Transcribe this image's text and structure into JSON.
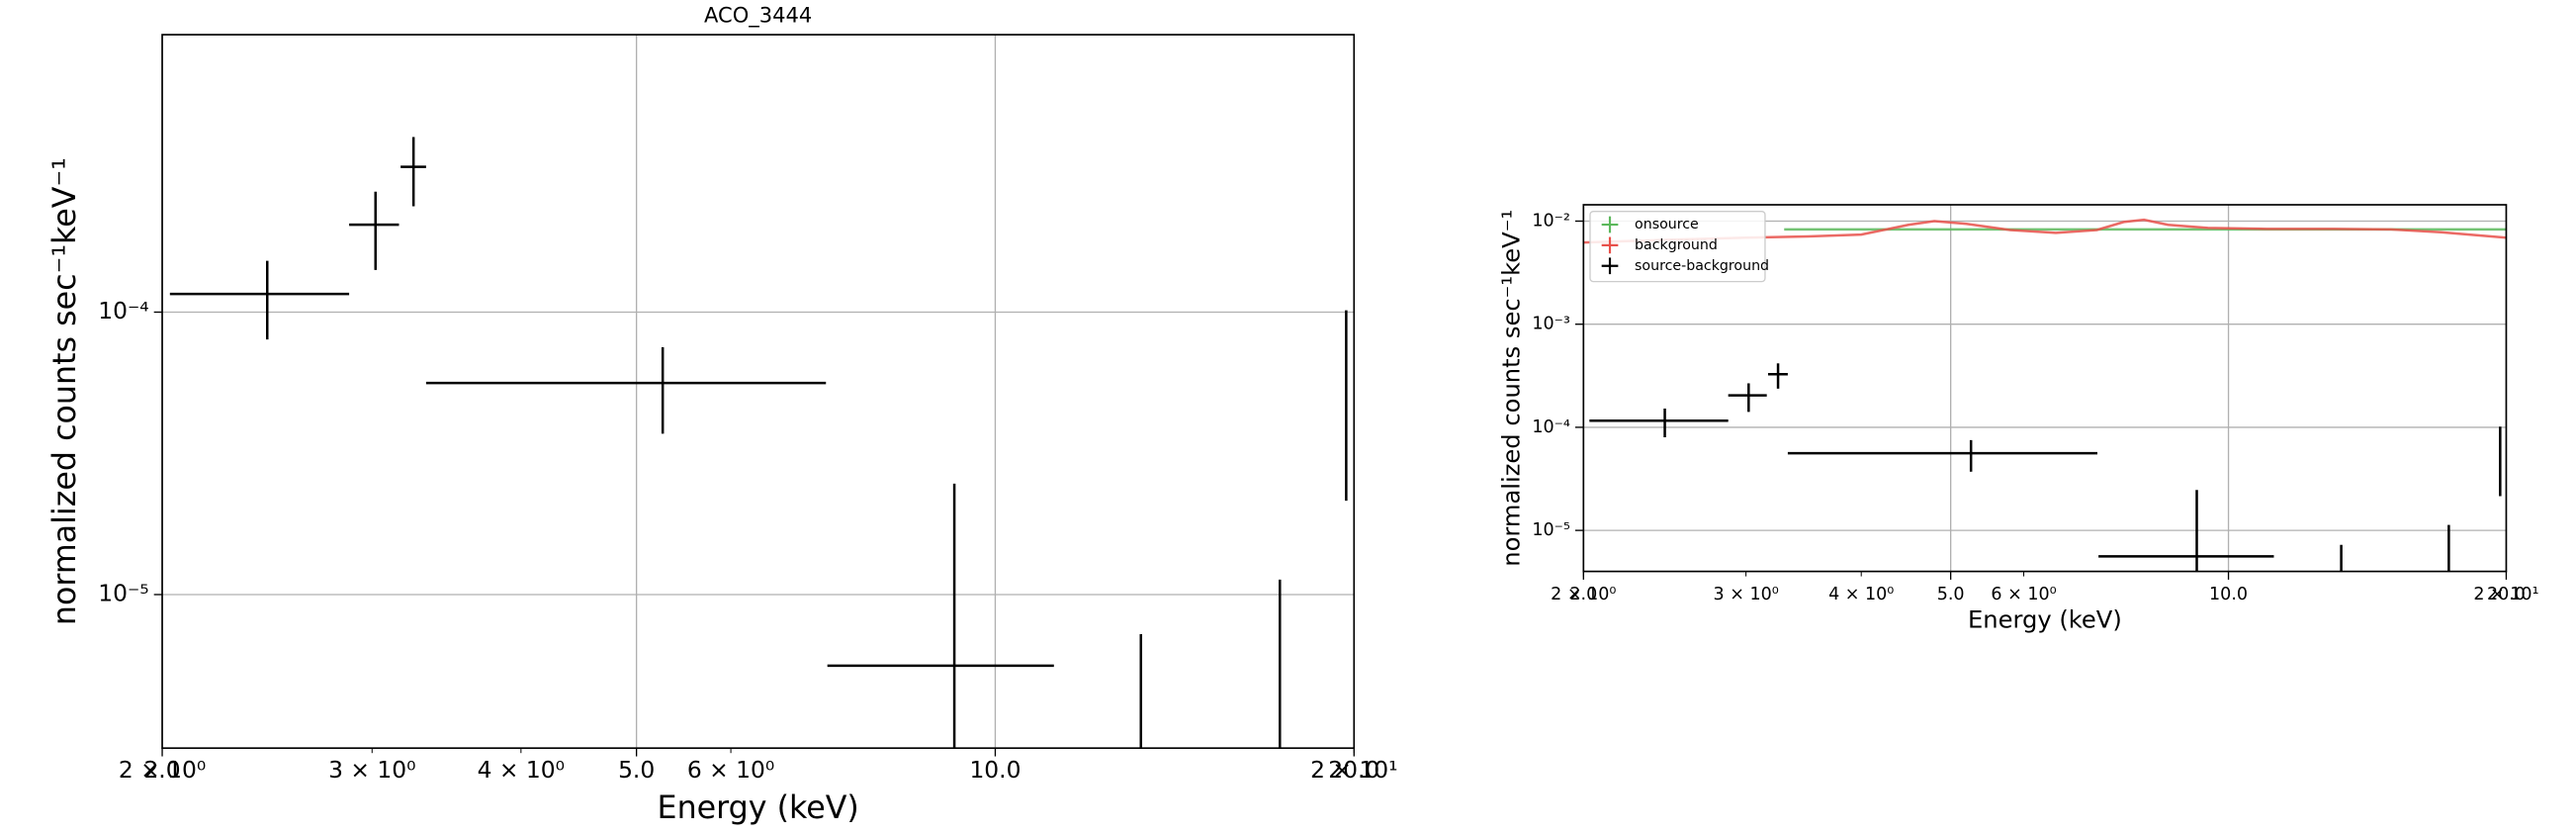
{
  "chart_data": [
    {
      "type": "errorbar",
      "title": "ACO_3444",
      "xlabel": "Energy (keV)",
      "ylabel": "normalized counts sec⁻¹keV⁻¹",
      "xlog": true,
      "ylog": true,
      "grid": true,
      "xlim": [
        2,
        20
      ],
      "ylim": [
        2.86e-06,
        0.00096
      ],
      "xticks": [
        {
          "value": 2,
          "label": "2.0"
        },
        {
          "value": 5,
          "label": "5.0"
        },
        {
          "value": 10,
          "label": "10.0"
        },
        {
          "value": 20,
          "label": "20.0"
        }
      ],
      "xticks_minor": [
        {
          "value": 2,
          "label": "2 × 10⁰"
        },
        {
          "value": 3,
          "label": "3 × 10⁰"
        },
        {
          "value": 4,
          "label": "4 × 10⁰"
        },
        {
          "value": 6,
          "label": "6 × 10⁰"
        },
        {
          "value": 20,
          "label": "2 × 10¹"
        }
      ],
      "yticks": [
        {
          "value": 0.0001,
          "label": "10⁻⁴"
        },
        {
          "value": 1e-05,
          "label": "10⁻⁵"
        }
      ],
      "series": [
        {
          "color": "#000000",
          "x": [
            2.45,
            3.02,
            3.25,
            5.26,
            9.24,
            13.25,
            17.33,
            19.7
          ],
          "xmin": [
            2.03,
            2.87,
            3.17,
            3.33,
            7.23,
            13.25,
            17.33,
            19.7
          ],
          "xmax": [
            2.87,
            3.16,
            3.33,
            7.21,
            11.2,
            13.25,
            17.33,
            19.7
          ],
          "values": [
            0.000116,
            0.000204,
            0.000327,
            5.61e-05,
            5.6e-06,
            0,
            0,
            6.15e-05
          ],
          "yerr": [
            3.6e-05,
            6.3e-05,
            9e-05,
            1.9e-05,
            1.91e-05,
            7.24e-06,
            1.13e-05,
            4e-05
          ]
        }
      ]
    },
    {
      "type": "errorbar",
      "xlabel": "Energy (keV)",
      "ylabel": "normalized counts sec⁻¹keV⁻¹",
      "xlog": true,
      "ylog": true,
      "grid": true,
      "legend": "upper left",
      "xlim": [
        2,
        20
      ],
      "ylim": [
        4e-06,
        0.0144
      ],
      "xticks": [
        {
          "value": 2,
          "label": "2.0"
        },
        {
          "value": 5,
          "label": "5.0"
        },
        {
          "value": 10,
          "label": "10.0"
        },
        {
          "value": 20,
          "label": "20.0"
        }
      ],
      "xticks_minor": [
        {
          "value": 2,
          "label": "2 × 10⁰"
        },
        {
          "value": 3,
          "label": "3 × 10⁰"
        },
        {
          "value": 4,
          "label": "4 × 10⁰"
        },
        {
          "value": 6,
          "label": "6 × 10⁰"
        },
        {
          "value": 20,
          "label": "2 × 10¹"
        }
      ],
      "yticks": [
        {
          "value": 0.01,
          "label": "10⁻²"
        },
        {
          "value": 0.001,
          "label": "10⁻³"
        },
        {
          "value": 0.0001,
          "label": "10⁻⁴"
        },
        {
          "value": 1e-05,
          "label": "10⁻⁵"
        }
      ],
      "series": [
        {
          "name": "onsource",
          "color": "#5cb85c",
          "x": [
            3.3,
            5.3,
            7.2,
            9.2,
            11.2,
            13.3,
            17.3,
            20
          ],
          "values": [
            0.0083,
            0.0083,
            0.0083,
            0.0083,
            0.0083,
            0.0083,
            0.0083,
            0.0083
          ]
        },
        {
          "name": "background",
          "color": "#e8504a",
          "x": [
            2,
            2.5,
            3,
            3.5,
            4,
            4.5,
            4.8,
            5.2,
            5.8,
            6.5,
            7.2,
            7.7,
            8.1,
            8.6,
            9.5,
            11,
            13,
            15,
            17,
            20
          ],
          "values": [
            0.0062,
            0.0066,
            0.0069,
            0.0071,
            0.0074,
            0.0092,
            0.01,
            0.0094,
            0.0082,
            0.0077,
            0.0082,
            0.0098,
            0.0103,
            0.0092,
            0.0086,
            0.0084,
            0.0084,
            0.0083,
            0.0078,
            0.0069
          ]
        },
        {
          "name": "source-background",
          "color": "#000000",
          "x": [
            2.45,
            3.02,
            3.25,
            5.26,
            9.24,
            13.25,
            17.33,
            19.7
          ],
          "xmin": [
            2.03,
            2.87,
            3.17,
            3.33,
            7.23,
            13.25,
            17.33,
            19.7
          ],
          "xmax": [
            2.87,
            3.16,
            3.33,
            7.21,
            11.2,
            13.25,
            17.33,
            19.7
          ],
          "values": [
            0.000116,
            0.000204,
            0.000327,
            5.61e-05,
            5.6e-06,
            0,
            0,
            6.15e-05
          ],
          "yerr": [
            3.6e-05,
            6.3e-05,
            9e-05,
            1.9e-05,
            1.91e-05,
            7.24e-06,
            1.13e-05,
            4e-05
          ]
        }
      ]
    }
  ]
}
